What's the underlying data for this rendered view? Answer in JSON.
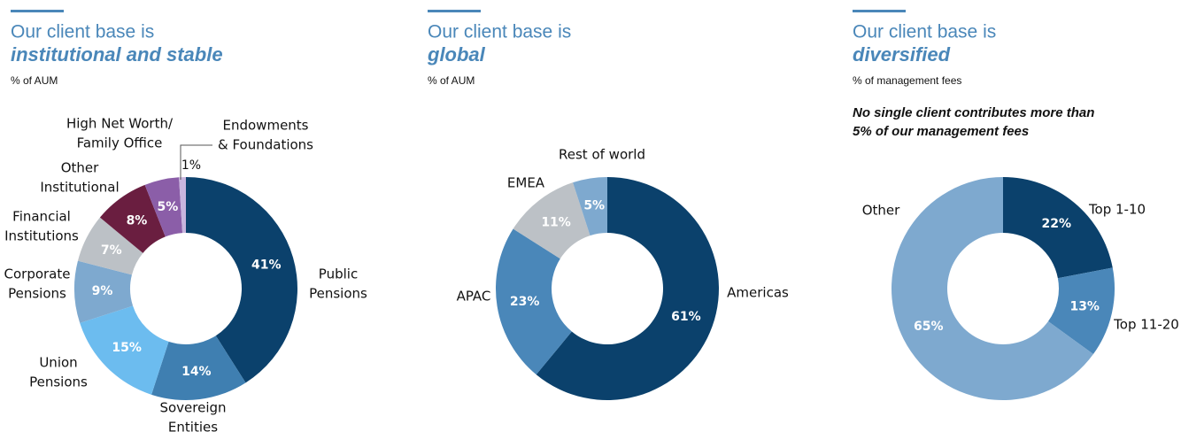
{
  "chart_data": [
    {
      "type": "donut",
      "title": [
        "Our client base is",
        "institutional and stable"
      ],
      "subtitle": "% of AUM",
      "categories": [
        [
          "Public",
          "Pensions"
        ],
        [
          "Sovereign",
          "Entities"
        ],
        [
          "Union",
          "Pensions"
        ],
        [
          "Corporate",
          "Pensions"
        ],
        [
          "Financial",
          "Institutions"
        ],
        [
          "Other",
          "Institutional"
        ],
        [
          "High Net Worth/",
          "Family Office"
        ],
        [
          "Endowments",
          "& Foundations"
        ]
      ],
      "values": [
        41,
        14,
        15,
        9,
        7,
        8,
        5,
        1
      ],
      "value_labels": [
        "41%",
        "14%",
        "15%",
        "9%",
        "7%",
        "8%",
        "5%",
        "1%"
      ],
      "colors": [
        "#0b416c",
        "#3f7fb1",
        "#6cbcef",
        "#7ea9cf",
        "#bcc1c6",
        "#6a1e40",
        "#8b5ea8",
        "#c9b5de"
      ]
    },
    {
      "type": "donut",
      "title": [
        "Our client base is",
        "global"
      ],
      "subtitle": "% of AUM",
      "categories": [
        [
          "Americas"
        ],
        [
          "APAC"
        ],
        [
          "EMEA"
        ],
        [
          "Rest of world"
        ]
      ],
      "values": [
        61,
        23,
        11,
        5
      ],
      "value_labels": [
        "61%",
        "23%",
        "11%",
        "5%"
      ],
      "colors": [
        "#0b416c",
        "#4a87b9",
        "#bcc1c6",
        "#7ea9cf"
      ]
    },
    {
      "type": "donut",
      "title": [
        "Our client base is",
        "diversified"
      ],
      "subtitle": "% of management fees",
      "note": [
        "No single client contributes more than",
        "5% of our management fees"
      ],
      "categories": [
        [
          "Top 1-10"
        ],
        [
          "Top 11-20"
        ],
        [
          "Other"
        ]
      ],
      "values": [
        22,
        13,
        65
      ],
      "value_labels": [
        "22%",
        "13%",
        "65%"
      ],
      "colors": [
        "#0b416c",
        "#4a87b9",
        "#7ea9cf"
      ]
    }
  ]
}
